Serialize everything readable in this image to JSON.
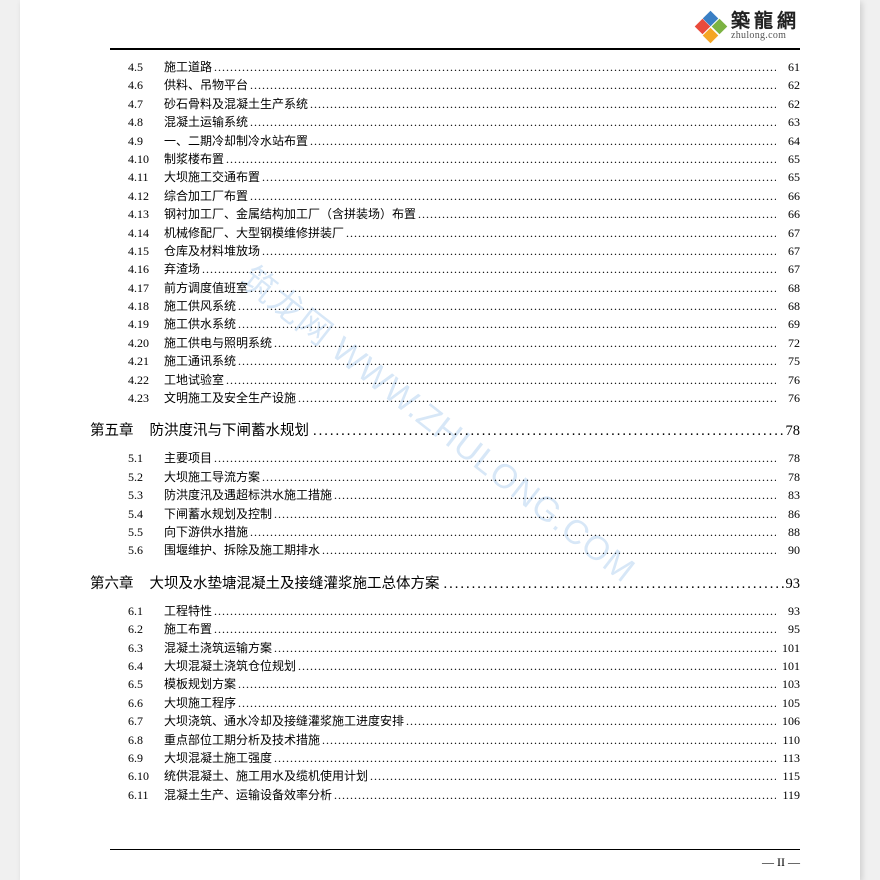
{
  "logo": {
    "cn": "築龍網",
    "en": "zhulong.com"
  },
  "watermark": {
    "cn": "筑龙网",
    "en": "WWW.ZHULONG.COM"
  },
  "pageNumber": "— II —",
  "dots": "........................................................................................................................................................................................",
  "chapterDots": ".......................................................................................................",
  "sections": [
    {
      "type": "item",
      "num": "4.5",
      "title": "施工道路",
      "page": "61"
    },
    {
      "type": "item",
      "num": "4.6",
      "title": "供料、吊物平台",
      "page": "62"
    },
    {
      "type": "item",
      "num": "4.7",
      "title": "砂石骨料及混凝土生产系统",
      "page": "62"
    },
    {
      "type": "item",
      "num": "4.8",
      "title": "混凝土运输系统",
      "page": "63"
    },
    {
      "type": "item",
      "num": "4.9",
      "title": "一、二期冷却制冷水站布置",
      "page": "64"
    },
    {
      "type": "item",
      "num": "4.10",
      "title": "制浆楼布置",
      "page": "65"
    },
    {
      "type": "item",
      "num": "4.11",
      "title": "大坝施工交通布置",
      "page": "65"
    },
    {
      "type": "item",
      "num": "4.12",
      "title": "综合加工厂布置",
      "page": "66"
    },
    {
      "type": "item",
      "num": "4.13",
      "title": "钢衬加工厂、金属结构加工厂（含拼装场）布置",
      "page": "66"
    },
    {
      "type": "item",
      "num": "4.14",
      "title": "机械修配厂、大型钢模维修拼装厂",
      "page": "67"
    },
    {
      "type": "item",
      "num": "4.15",
      "title": "仓库及材料堆放场",
      "page": "67"
    },
    {
      "type": "item",
      "num": "4.16",
      "title": "弃渣场",
      "page": "67"
    },
    {
      "type": "item",
      "num": "4.17",
      "title": "前方调度值班室",
      "page": "68"
    },
    {
      "type": "item",
      "num": "4.18",
      "title": "施工供风系统",
      "page": "68"
    },
    {
      "type": "item",
      "num": "4.19",
      "title": "施工供水系统",
      "page": "69"
    },
    {
      "type": "item",
      "num": "4.20",
      "title": "施工供电与照明系统",
      "page": "72"
    },
    {
      "type": "item",
      "num": "4.21",
      "title": "施工通讯系统",
      "page": "75"
    },
    {
      "type": "item",
      "num": "4.22",
      "title": "工地试验室",
      "page": "76"
    },
    {
      "type": "item",
      "num": "4.23",
      "title": "文明施工及安全生产设施",
      "page": "76"
    },
    {
      "type": "chapter",
      "num": "第五章",
      "title": "防洪度汛与下闸蓄水规划",
      "page": "78"
    },
    {
      "type": "item",
      "num": "5.1",
      "title": "主要项目",
      "page": "78"
    },
    {
      "type": "item",
      "num": "5.2",
      "title": "大坝施工导流方案",
      "page": "78"
    },
    {
      "type": "item",
      "num": "5.3",
      "title": "防洪度汛及遇超标洪水施工措施",
      "page": "83"
    },
    {
      "type": "item",
      "num": "5.4",
      "title": "下闸蓄水规划及控制",
      "page": "86"
    },
    {
      "type": "item",
      "num": "5.5",
      "title": "向下游供水措施",
      "page": "88"
    },
    {
      "type": "item",
      "num": "5.6",
      "title": "围堰维护、拆除及施工期排水",
      "page": "90"
    },
    {
      "type": "chapter",
      "num": "第六章",
      "title": "大坝及水垫塘混凝土及接缝灌浆施工总体方案",
      "page": "93"
    },
    {
      "type": "item",
      "num": "6.1",
      "title": "工程特性",
      "page": "93"
    },
    {
      "type": "item",
      "num": "6.2",
      "title": "施工布置",
      "page": "95"
    },
    {
      "type": "item",
      "num": "6.3",
      "title": "混凝土浇筑运输方案",
      "page": "101"
    },
    {
      "type": "item",
      "num": "6.4",
      "title": "大坝混凝土浇筑仓位规划",
      "page": "101"
    },
    {
      "type": "item",
      "num": "6.5",
      "title": "模板规划方案",
      "page": "103"
    },
    {
      "type": "item",
      "num": "6.6",
      "title": "大坝施工程序",
      "page": "105"
    },
    {
      "type": "item",
      "num": "6.7",
      "title": "大坝浇筑、通水冷却及接缝灌浆施工进度安排",
      "page": "106"
    },
    {
      "type": "item",
      "num": "6.8",
      "title": "重点部位工期分析及技术措施",
      "page": "110"
    },
    {
      "type": "item",
      "num": "6.9",
      "title": "大坝混凝土施工强度",
      "page": "113"
    },
    {
      "type": "item",
      "num": "6.10",
      "title": "统供混凝土、施工用水及缆机使用计划",
      "page": "115"
    },
    {
      "type": "item",
      "num": "6.11",
      "title": "混凝土生产、运输设备效率分析",
      "page": "119"
    }
  ],
  "logoColors": {
    "top": "#3a7fc4",
    "right": "#7cb342",
    "bottom": "#f5a623",
    "left": "#e94b3c"
  }
}
